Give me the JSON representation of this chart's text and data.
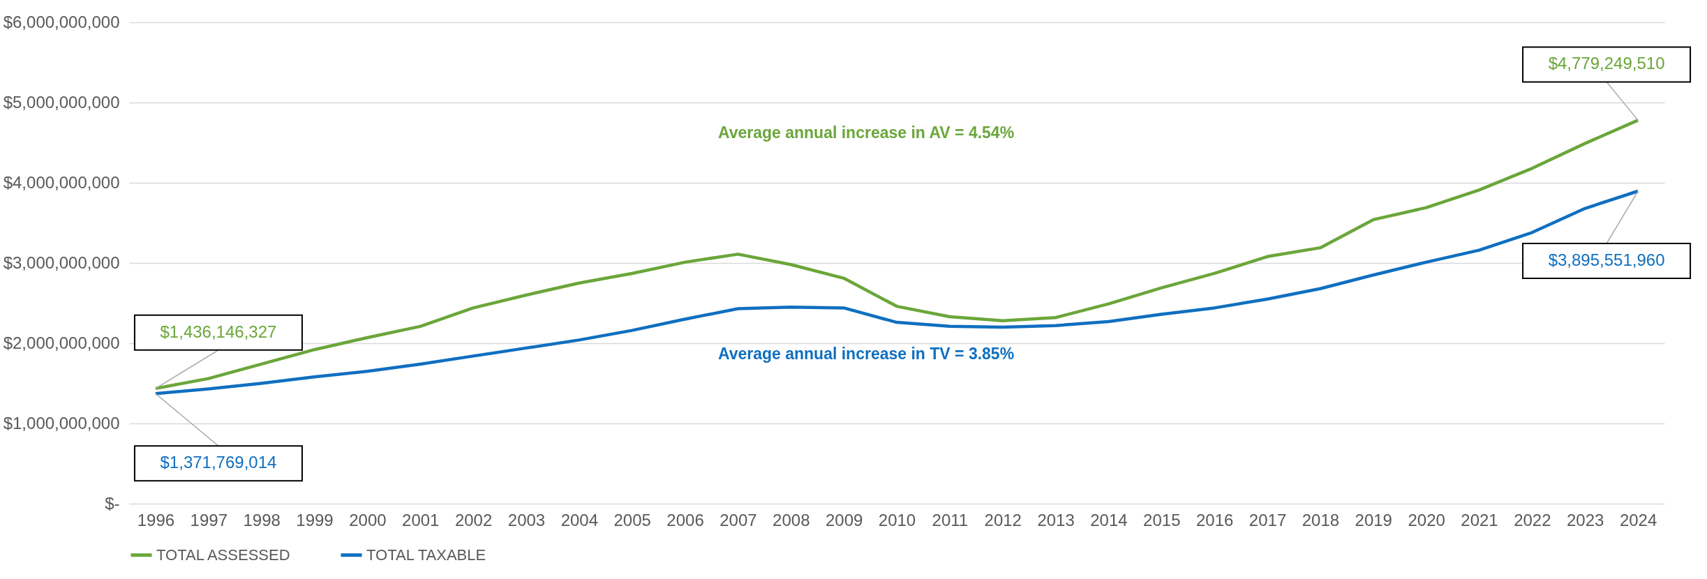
{
  "chart_data": {
    "type": "line",
    "categories": [
      "1996",
      "1997",
      "1998",
      "1999",
      "2000",
      "2001",
      "2002",
      "2003",
      "2004",
      "2005",
      "2006",
      "2007",
      "2008",
      "2009",
      "2010",
      "2011",
      "2012",
      "2013",
      "2014",
      "2015",
      "2016",
      "2017",
      "2018",
      "2019",
      "2020",
      "2021",
      "2022",
      "2023",
      "2024"
    ],
    "series": [
      {
        "name": "TOTAL ASSESSED",
        "color": "#6aa63a",
        "values": [
          1436146327,
          1560000000,
          1740000000,
          1920000000,
          2070000000,
          2210000000,
          2440000000,
          2600000000,
          2750000000,
          2870000000,
          3010000000,
          3110000000,
          2980000000,
          2810000000,
          2460000000,
          2330000000,
          2280000000,
          2320000000,
          2490000000,
          2690000000,
          2870000000,
          3080000000,
          3190000000,
          3540000000,
          3690000000,
          3910000000,
          4180000000,
          4490000000,
          4779249510
        ]
      },
      {
        "name": "TOTAL TAXABLE",
        "color": "#0f6fc0",
        "values": [
          1371769014,
          1430000000,
          1500000000,
          1580000000,
          1650000000,
          1740000000,
          1840000000,
          1940000000,
          2040000000,
          2160000000,
          2300000000,
          2430000000,
          2450000000,
          2440000000,
          2260000000,
          2210000000,
          2200000000,
          2220000000,
          2270000000,
          2360000000,
          2440000000,
          2550000000,
          2680000000,
          2850000000,
          3010000000,
          3160000000,
          3380000000,
          3680000000,
          3895551960
        ]
      }
    ],
    "ylim": [
      0,
      6000000000
    ],
    "yticks": [
      {
        "value": 0,
        "label": "$-"
      },
      {
        "value": 1000000000,
        "label": "$1,000,000,000"
      },
      {
        "value": 2000000000,
        "label": "$2,000,000,000"
      },
      {
        "value": 3000000000,
        "label": "$3,000,000,000"
      },
      {
        "value": 4000000000,
        "label": "$4,000,000,000"
      },
      {
        "value": 5000000000,
        "label": "$5,000,000,000"
      },
      {
        "value": 6000000000,
        "label": "$6,000,000,000"
      }
    ],
    "grid": "y",
    "legend": "bottom",
    "marker": "none",
    "line_style": "solid",
    "annotations": [
      "Average annual increase in AV = 4.54%",
      "Average annual increase in TV = 3.85%",
      {
        "text": "$1,436,146,327",
        "x": "1996",
        "y": 1436146327
      },
      {
        "text": "$1,371,769,014",
        "x": "1996",
        "y": 1371769014
      },
      {
        "text": "$4,779,249,510",
        "x": "2024",
        "y": 4779249510
      },
      {
        "text": "$3,895,551,960",
        "x": "2024",
        "y": 3895551960
      }
    ]
  }
}
